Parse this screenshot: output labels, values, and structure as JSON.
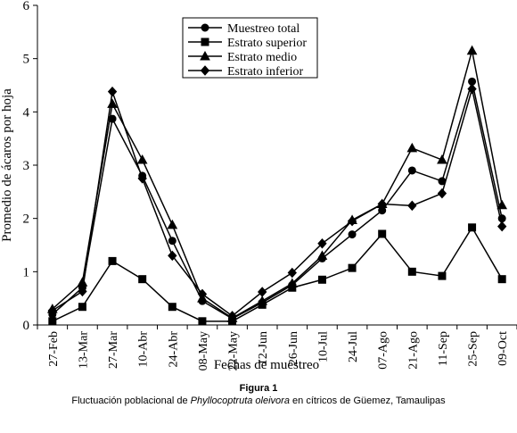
{
  "chart_data": {
    "type": "line",
    "xlabel": "Fechas de muestreo",
    "ylabel": "Promedio de ácaros por hoja",
    "ylim": [
      0,
      6
    ],
    "yticks": [
      0,
      1,
      2,
      3,
      4,
      5,
      6
    ],
    "grid": false,
    "legend_position": "top-center",
    "categories": [
      "27-Feb",
      "13-Mar",
      "27-Mar",
      "10-Abr",
      "24-Abr",
      "08-May",
      "22-May",
      "12-Jun",
      "26-Jun",
      "10-Jul",
      "24-Jul",
      "07-Ago",
      "21-Ago",
      "11-Sep",
      "25-Sep",
      "09-Oct"
    ],
    "series": [
      {
        "name": "Muestreo total",
        "marker": "circle",
        "values": [
          0.2,
          0.7,
          3.87,
          2.8,
          1.58,
          0.45,
          0.12,
          0.42,
          0.75,
          1.25,
          1.7,
          2.15,
          2.9,
          2.7,
          4.57,
          2.0
        ]
      },
      {
        "name": "Estrato superior",
        "marker": "square",
        "values": [
          0.07,
          0.34,
          1.2,
          0.86,
          0.34,
          0.07,
          0.07,
          0.38,
          0.7,
          0.85,
          1.07,
          1.71,
          1.0,
          0.92,
          1.83,
          0.86
        ]
      },
      {
        "name": "Estrato medio",
        "marker": "triangle",
        "values": [
          0.3,
          0.8,
          4.15,
          3.1,
          1.88,
          0.5,
          0.13,
          0.45,
          0.78,
          1.3,
          1.97,
          2.27,
          3.32,
          3.1,
          5.15,
          2.25
        ]
      },
      {
        "name": "Estrato inferior",
        "marker": "diamond",
        "values": [
          0.27,
          0.63,
          4.38,
          2.75,
          1.3,
          0.58,
          0.17,
          0.62,
          0.98,
          1.53,
          1.95,
          2.27,
          2.24,
          2.47,
          4.43,
          1.85
        ]
      }
    ]
  },
  "figure": {
    "label": "Figura 1",
    "caption_prefix": "Fluctuación poblacional de ",
    "caption_italic": "Phyllocoptruta oleivora",
    "caption_suffix": " en cítricos de Güemez, Tamaulipas"
  }
}
